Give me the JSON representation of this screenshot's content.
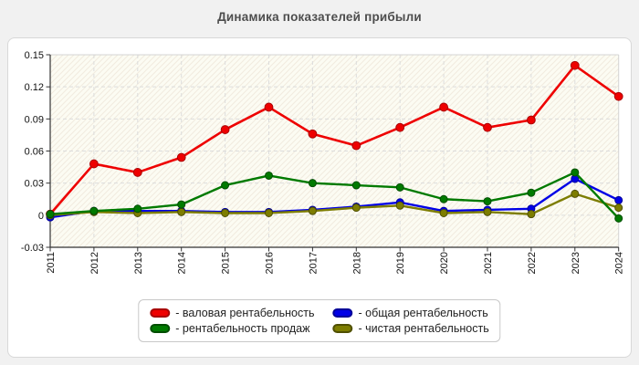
{
  "window": {
    "background": "#f1f1f1",
    "panel_background": "#ffffff",
    "panel_border": "#d8d8d8"
  },
  "title": "Динамика показателей прибыли",
  "chart_data": {
    "type": "line",
    "title": "Динамика показателей прибыли",
    "x_labels": [
      "2011",
      "2012",
      "2013",
      "2014",
      "2015",
      "2016",
      "2017",
      "2018",
      "2019",
      "2020",
      "2021",
      "2022",
      "2023",
      "2024"
    ],
    "ylim": [
      -0.03,
      0.15
    ],
    "yticks": [
      0.15,
      0.12,
      0.09,
      0.06,
      0.03,
      0,
      -0.03
    ],
    "ytick_labels": [
      "0.15",
      "0.12",
      "0.09",
      "0.06",
      "0.03",
      "0",
      "-0.03"
    ],
    "grid": "dashed horizontal and vertical",
    "plot_background": "#fcfcf3",
    "hatch_color": "#f1ebdf",
    "grid_color": "#dcdcdc",
    "axis_color": "#333333",
    "legend_position": "bottom-center",
    "series": [
      {
        "name": "валовая рентабельность",
        "legend_label": "- валовая рентабельность",
        "color": "#ee0000",
        "marker_border": "#a80000",
        "values": [
          0.001,
          0.048,
          0.04,
          0.054,
          0.08,
          0.101,
          0.076,
          0.065,
          0.082,
          0.101,
          0.082,
          0.089,
          0.14,
          0.111
        ]
      },
      {
        "name": "общая рентабельность",
        "legend_label": "- общая рентабельность",
        "color": "#0000e6",
        "marker_border": "#000099",
        "values": [
          -0.002,
          0.004,
          0.004,
          0.004,
          0.003,
          0.003,
          0.005,
          0.008,
          0.012,
          0.004,
          0.005,
          0.006,
          0.034,
          0.014
        ]
      },
      {
        "name": "рентабельность продаж",
        "legend_label": "- рентабельность продаж",
        "color": "#007a00",
        "marker_border": "#004d00",
        "values": [
          0.001,
          0.004,
          0.006,
          0.01,
          0.028,
          0.037,
          0.03,
          0.028,
          0.026,
          0.015,
          0.013,
          0.021,
          0.04,
          -0.003
        ]
      },
      {
        "name": "чистая рентабельность",
        "legend_label": "- чистая рентабельность",
        "color": "#7d7d00",
        "marker_border": "#4f4f00",
        "values": [
          0.0,
          0.003,
          0.002,
          0.003,
          0.002,
          0.002,
          0.004,
          0.007,
          0.009,
          0.002,
          0.003,
          0.001,
          0.02,
          0.007
        ]
      }
    ],
    "draw_order": [
      0,
      1,
      3,
      2
    ],
    "legend_order": [
      0,
      1,
      2,
      3
    ]
  }
}
